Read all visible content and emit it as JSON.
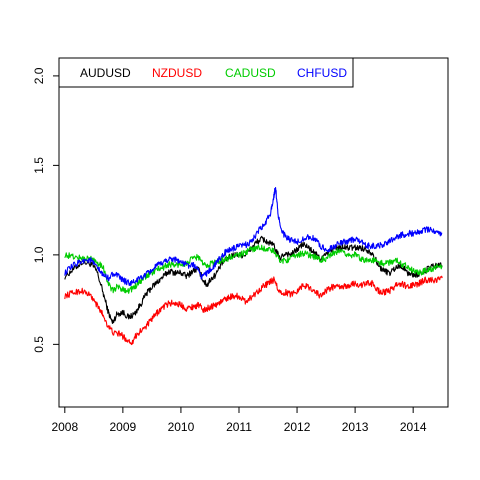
{
  "chart_data": {
    "type": "line",
    "title": "",
    "xlabel": "",
    "ylabel": "",
    "xlim": [
      2007.9,
      2014.6
    ],
    "ylim": [
      0.15,
      2.1
    ],
    "x_ticks": [
      2008,
      2009,
      2010,
      2011,
      2012,
      2013,
      2014
    ],
    "x_tick_labels": [
      "2008",
      "2009",
      "2010",
      "2011",
      "2012",
      "2013",
      "2014"
    ],
    "y_ticks": [
      0.5,
      1.0,
      1.5,
      2.0
    ],
    "y_tick_labels": [
      "0.5",
      "1.0",
      "1.5",
      "2.0"
    ],
    "grid": false,
    "legend_position": "top-left",
    "series": [
      {
        "name": "AUDUSD",
        "color": "#000000",
        "points": [
          [
            2008.0,
            0.88
          ],
          [
            2008.15,
            0.92
          ],
          [
            2008.3,
            0.96
          ],
          [
            2008.45,
            0.95
          ],
          [
            2008.55,
            0.91
          ],
          [
            2008.65,
            0.8
          ],
          [
            2008.75,
            0.68
          ],
          [
            2008.82,
            0.62
          ],
          [
            2008.9,
            0.67
          ],
          [
            2009.0,
            0.68
          ],
          [
            2009.1,
            0.65
          ],
          [
            2009.2,
            0.67
          ],
          [
            2009.3,
            0.72
          ],
          [
            2009.4,
            0.78
          ],
          [
            2009.5,
            0.82
          ],
          [
            2009.6,
            0.85
          ],
          [
            2009.7,
            0.88
          ],
          [
            2009.8,
            0.91
          ],
          [
            2009.9,
            0.9
          ],
          [
            2010.0,
            0.9
          ],
          [
            2010.1,
            0.88
          ],
          [
            2010.2,
            0.91
          ],
          [
            2010.3,
            0.92
          ],
          [
            2010.4,
            0.85
          ],
          [
            2010.45,
            0.83
          ],
          [
            2010.5,
            0.86
          ],
          [
            2010.6,
            0.89
          ],
          [
            2010.7,
            0.95
          ],
          [
            2010.8,
            0.98
          ],
          [
            2010.9,
            1.0
          ],
          [
            2011.0,
            1.0
          ],
          [
            2011.1,
            1.0
          ],
          [
            2011.2,
            1.03
          ],
          [
            2011.3,
            1.07
          ],
          [
            2011.4,
            1.09
          ],
          [
            2011.5,
            1.07
          ],
          [
            2011.6,
            1.05
          ],
          [
            2011.7,
            0.98
          ],
          [
            2011.8,
            1.01
          ],
          [
            2011.9,
            1.0
          ],
          [
            2012.0,
            1.03
          ],
          [
            2012.1,
            1.06
          ],
          [
            2012.2,
            1.04
          ],
          [
            2012.3,
            1.01
          ],
          [
            2012.4,
            0.98
          ],
          [
            2012.5,
            1.0
          ],
          [
            2012.6,
            1.03
          ],
          [
            2012.7,
            1.04
          ],
          [
            2012.8,
            1.04
          ],
          [
            2012.9,
            1.04
          ],
          [
            2013.0,
            1.04
          ],
          [
            2013.1,
            1.04
          ],
          [
            2013.2,
            1.03
          ],
          [
            2013.3,
            1.01
          ],
          [
            2013.4,
            0.94
          ],
          [
            2013.5,
            0.91
          ],
          [
            2013.6,
            0.9
          ],
          [
            2013.7,
            0.93
          ],
          [
            2013.8,
            0.94
          ],
          [
            2013.9,
            0.9
          ],
          [
            2014.0,
            0.89
          ],
          [
            2014.1,
            0.89
          ],
          [
            2014.2,
            0.91
          ],
          [
            2014.3,
            0.93
          ],
          [
            2014.4,
            0.94
          ],
          [
            2014.5,
            0.94
          ]
        ]
      },
      {
        "name": "NZDUSD",
        "color": "#ff0000",
        "points": [
          [
            2008.0,
            0.77
          ],
          [
            2008.15,
            0.79
          ],
          [
            2008.3,
            0.8
          ],
          [
            2008.45,
            0.77
          ],
          [
            2008.55,
            0.72
          ],
          [
            2008.65,
            0.67
          ],
          [
            2008.75,
            0.6
          ],
          [
            2008.85,
            0.56
          ],
          [
            2008.95,
            0.56
          ],
          [
            2009.05,
            0.53
          ],
          [
            2009.15,
            0.51
          ],
          [
            2009.25,
            0.56
          ],
          [
            2009.4,
            0.6
          ],
          [
            2009.5,
            0.64
          ],
          [
            2009.6,
            0.68
          ],
          [
            2009.7,
            0.71
          ],
          [
            2009.8,
            0.73
          ],
          [
            2009.9,
            0.73
          ],
          [
            2010.0,
            0.72
          ],
          [
            2010.1,
            0.7
          ],
          [
            2010.2,
            0.71
          ],
          [
            2010.3,
            0.72
          ],
          [
            2010.4,
            0.69
          ],
          [
            2010.5,
            0.71
          ],
          [
            2010.6,
            0.72
          ],
          [
            2010.7,
            0.74
          ],
          [
            2010.8,
            0.76
          ],
          [
            2010.9,
            0.77
          ],
          [
            2011.0,
            0.77
          ],
          [
            2011.1,
            0.74
          ],
          [
            2011.2,
            0.76
          ],
          [
            2011.3,
            0.79
          ],
          [
            2011.4,
            0.82
          ],
          [
            2011.5,
            0.84
          ],
          [
            2011.6,
            0.86
          ],
          [
            2011.7,
            0.79
          ],
          [
            2011.8,
            0.79
          ],
          [
            2011.9,
            0.78
          ],
          [
            2012.0,
            0.8
          ],
          [
            2012.1,
            0.83
          ],
          [
            2012.2,
            0.82
          ],
          [
            2012.3,
            0.8
          ],
          [
            2012.4,
            0.77
          ],
          [
            2012.5,
            0.8
          ],
          [
            2012.6,
            0.82
          ],
          [
            2012.7,
            0.82
          ],
          [
            2012.8,
            0.82
          ],
          [
            2012.9,
            0.83
          ],
          [
            2013.0,
            0.84
          ],
          [
            2013.1,
            0.83
          ],
          [
            2013.2,
            0.84
          ],
          [
            2013.3,
            0.84
          ],
          [
            2013.4,
            0.8
          ],
          [
            2013.5,
            0.79
          ],
          [
            2013.6,
            0.8
          ],
          [
            2013.7,
            0.83
          ],
          [
            2013.8,
            0.84
          ],
          [
            2013.9,
            0.82
          ],
          [
            2014.0,
            0.83
          ],
          [
            2014.1,
            0.84
          ],
          [
            2014.2,
            0.86
          ],
          [
            2014.3,
            0.86
          ],
          [
            2014.4,
            0.86
          ],
          [
            2014.5,
            0.87
          ]
        ]
      },
      {
        "name": "CADUSD",
        "color": "#00cc00",
        "points": [
          [
            2008.0,
            1.0
          ],
          [
            2008.15,
            0.99
          ],
          [
            2008.3,
            0.98
          ],
          [
            2008.45,
            0.98
          ],
          [
            2008.55,
            0.96
          ],
          [
            2008.65,
            0.94
          ],
          [
            2008.75,
            0.84
          ],
          [
            2008.82,
            0.8
          ],
          [
            2008.9,
            0.82
          ],
          [
            2009.0,
            0.81
          ],
          [
            2009.1,
            0.8
          ],
          [
            2009.2,
            0.82
          ],
          [
            2009.3,
            0.85
          ],
          [
            2009.4,
            0.88
          ],
          [
            2009.5,
            0.9
          ],
          [
            2009.6,
            0.92
          ],
          [
            2009.7,
            0.93
          ],
          [
            2009.8,
            0.95
          ],
          [
            2009.9,
            0.94
          ],
          [
            2010.0,
            0.95
          ],
          [
            2010.1,
            0.95
          ],
          [
            2010.2,
            0.98
          ],
          [
            2010.3,
            0.99
          ],
          [
            2010.4,
            0.94
          ],
          [
            2010.5,
            0.95
          ],
          [
            2010.6,
            0.96
          ],
          [
            2010.7,
            0.97
          ],
          [
            2010.8,
            0.98
          ],
          [
            2010.9,
            0.99
          ],
          [
            2011.0,
            1.0
          ],
          [
            2011.1,
            1.01
          ],
          [
            2011.2,
            1.03
          ],
          [
            2011.3,
            1.04
          ],
          [
            2011.4,
            1.04
          ],
          [
            2011.5,
            1.03
          ],
          [
            2011.6,
            1.02
          ],
          [
            2011.7,
            0.97
          ],
          [
            2011.8,
            0.97
          ],
          [
            2011.9,
            0.98
          ],
          [
            2012.0,
            1.0
          ],
          [
            2012.1,
            1.01
          ],
          [
            2012.2,
            1.0
          ],
          [
            2012.3,
            0.99
          ],
          [
            2012.4,
            0.97
          ],
          [
            2012.5,
            0.98
          ],
          [
            2012.6,
            1.0
          ],
          [
            2012.7,
            1.02
          ],
          [
            2012.8,
            1.01
          ],
          [
            2012.9,
            1.0
          ],
          [
            2013.0,
            1.0
          ],
          [
            2013.1,
            0.98
          ],
          [
            2013.2,
            0.97
          ],
          [
            2013.3,
            0.97
          ],
          [
            2013.4,
            0.96
          ],
          [
            2013.5,
            0.95
          ],
          [
            2013.6,
            0.96
          ],
          [
            2013.7,
            0.97
          ],
          [
            2013.8,
            0.95
          ],
          [
            2013.9,
            0.94
          ],
          [
            2014.0,
            0.91
          ],
          [
            2014.1,
            0.9
          ],
          [
            2014.2,
            0.91
          ],
          [
            2014.3,
            0.92
          ],
          [
            2014.4,
            0.93
          ],
          [
            2014.5,
            0.94
          ]
        ]
      },
      {
        "name": "CHFUSD",
        "color": "#0000ff",
        "points": [
          [
            2008.0,
            0.9
          ],
          [
            2008.15,
            0.94
          ],
          [
            2008.3,
            0.97
          ],
          [
            2008.45,
            0.97
          ],
          [
            2008.55,
            0.93
          ],
          [
            2008.65,
            0.89
          ],
          [
            2008.75,
            0.87
          ],
          [
            2008.85,
            0.9
          ],
          [
            2008.95,
            0.87
          ],
          [
            2009.05,
            0.85
          ],
          [
            2009.15,
            0.84
          ],
          [
            2009.25,
            0.86
          ],
          [
            2009.35,
            0.88
          ],
          [
            2009.45,
            0.9
          ],
          [
            2009.55,
            0.93
          ],
          [
            2009.65,
            0.95
          ],
          [
            2009.75,
            0.97
          ],
          [
            2009.85,
            0.98
          ],
          [
            2009.95,
            0.97
          ],
          [
            2010.05,
            0.95
          ],
          [
            2010.15,
            0.94
          ],
          [
            2010.25,
            0.94
          ],
          [
            2010.35,
            0.88
          ],
          [
            2010.45,
            0.9
          ],
          [
            2010.55,
            0.93
          ],
          [
            2010.65,
            0.97
          ],
          [
            2010.75,
            1.01
          ],
          [
            2010.85,
            1.03
          ],
          [
            2010.95,
            1.04
          ],
          [
            2011.05,
            1.05
          ],
          [
            2011.15,
            1.06
          ],
          [
            2011.25,
            1.09
          ],
          [
            2011.35,
            1.14
          ],
          [
            2011.45,
            1.17
          ],
          [
            2011.55,
            1.24
          ],
          [
            2011.6,
            1.33
          ],
          [
            2011.63,
            1.38
          ],
          [
            2011.67,
            1.24
          ],
          [
            2011.72,
            1.14
          ],
          [
            2011.8,
            1.1
          ],
          [
            2011.9,
            1.08
          ],
          [
            2012.0,
            1.07
          ],
          [
            2012.1,
            1.09
          ],
          [
            2012.2,
            1.1
          ],
          [
            2012.3,
            1.09
          ],
          [
            2012.4,
            1.05
          ],
          [
            2012.5,
            1.03
          ],
          [
            2012.6,
            1.04
          ],
          [
            2012.7,
            1.06
          ],
          [
            2012.8,
            1.07
          ],
          [
            2012.9,
            1.08
          ],
          [
            2013.0,
            1.09
          ],
          [
            2013.1,
            1.07
          ],
          [
            2013.2,
            1.05
          ],
          [
            2013.3,
            1.05
          ],
          [
            2013.4,
            1.05
          ],
          [
            2013.5,
            1.06
          ],
          [
            2013.6,
            1.08
          ],
          [
            2013.7,
            1.1
          ],
          [
            2013.8,
            1.11
          ],
          [
            2013.9,
            1.12
          ],
          [
            2014.0,
            1.12
          ],
          [
            2014.1,
            1.13
          ],
          [
            2014.2,
            1.14
          ],
          [
            2014.3,
            1.14
          ],
          [
            2014.4,
            1.13
          ],
          [
            2014.5,
            1.12
          ]
        ]
      }
    ]
  }
}
